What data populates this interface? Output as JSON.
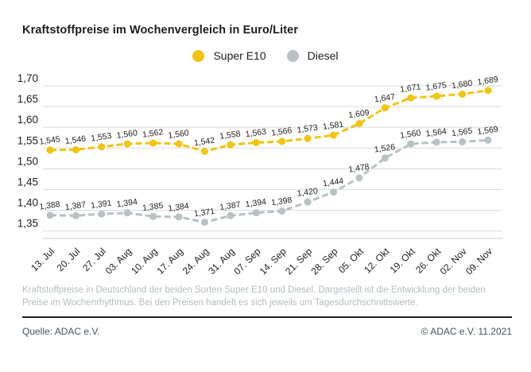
{
  "title": "Kraftstoffpreise im Wochenvergleich in Euro/Liter",
  "footnote": "Kraftstoffpreise in Deutschland der beiden Sorten Super E10 und Diesel. Dargestellt ist die Entwicklung der beiden Preise im Wochenrhythmus. Bei den Preisen handelt es sich jeweils um Tagesdurchschnittswerte.",
  "source": {
    "left": "Quelle: ADAC e.V.",
    "right": "© ADAC e.V. 11.2021"
  },
  "colors": {
    "super_e10": "#f2c40e",
    "diesel": "#b7c2c4",
    "gridline": "#d7dbdd",
    "axis_line": "#c6cccd",
    "text": "#1d1d1b",
    "footnote_text": "#b3bcc0",
    "source_text": "#44525a"
  },
  "chart_data": {
    "type": "line",
    "title": "Kraftstoffpreise im Wochenvergleich in Euro/Liter",
    "xlabel": "",
    "ylabel": "Euro/Liter",
    "grid": true,
    "legend_position": "top-center",
    "value_labels": true,
    "line_style": "dashed",
    "ylim": [
      1.332,
      1.7
    ],
    "y_ticks": [
      1.7,
      1.65,
      1.6,
      1.55,
      1.5,
      1.45,
      1.4,
      1.35
    ],
    "categories": [
      "13. Jul",
      "20. Jul",
      "27. Jul",
      "03. Aug",
      "10. Aug",
      "17. Aug",
      "24. Aug",
      "31. Aug",
      "07. Sep",
      "14. Sep",
      "21. Sep",
      "28. Sep",
      "05. Okt",
      "12. Okt",
      "19. Okt",
      "26. Okt",
      "02. Nov",
      "09. Nov"
    ],
    "series": [
      {
        "name": "Super E10",
        "color": "#f2c40e",
        "values": [
          1.545,
          1.546,
          1.553,
          1.56,
          1.562,
          1.56,
          1.542,
          1.558,
          1.563,
          1.566,
          1.573,
          1.581,
          1.609,
          1.647,
          1.671,
          1.675,
          1.68,
          1.689
        ]
      },
      {
        "name": "Diesel",
        "color": "#b7c2c4",
        "values": [
          1.388,
          1.387,
          1.391,
          1.394,
          1.385,
          1.384,
          1.371,
          1.387,
          1.394,
          1.398,
          1.42,
          1.444,
          1.478,
          1.526,
          1.56,
          1.564,
          1.565,
          1.569
        ]
      }
    ]
  }
}
